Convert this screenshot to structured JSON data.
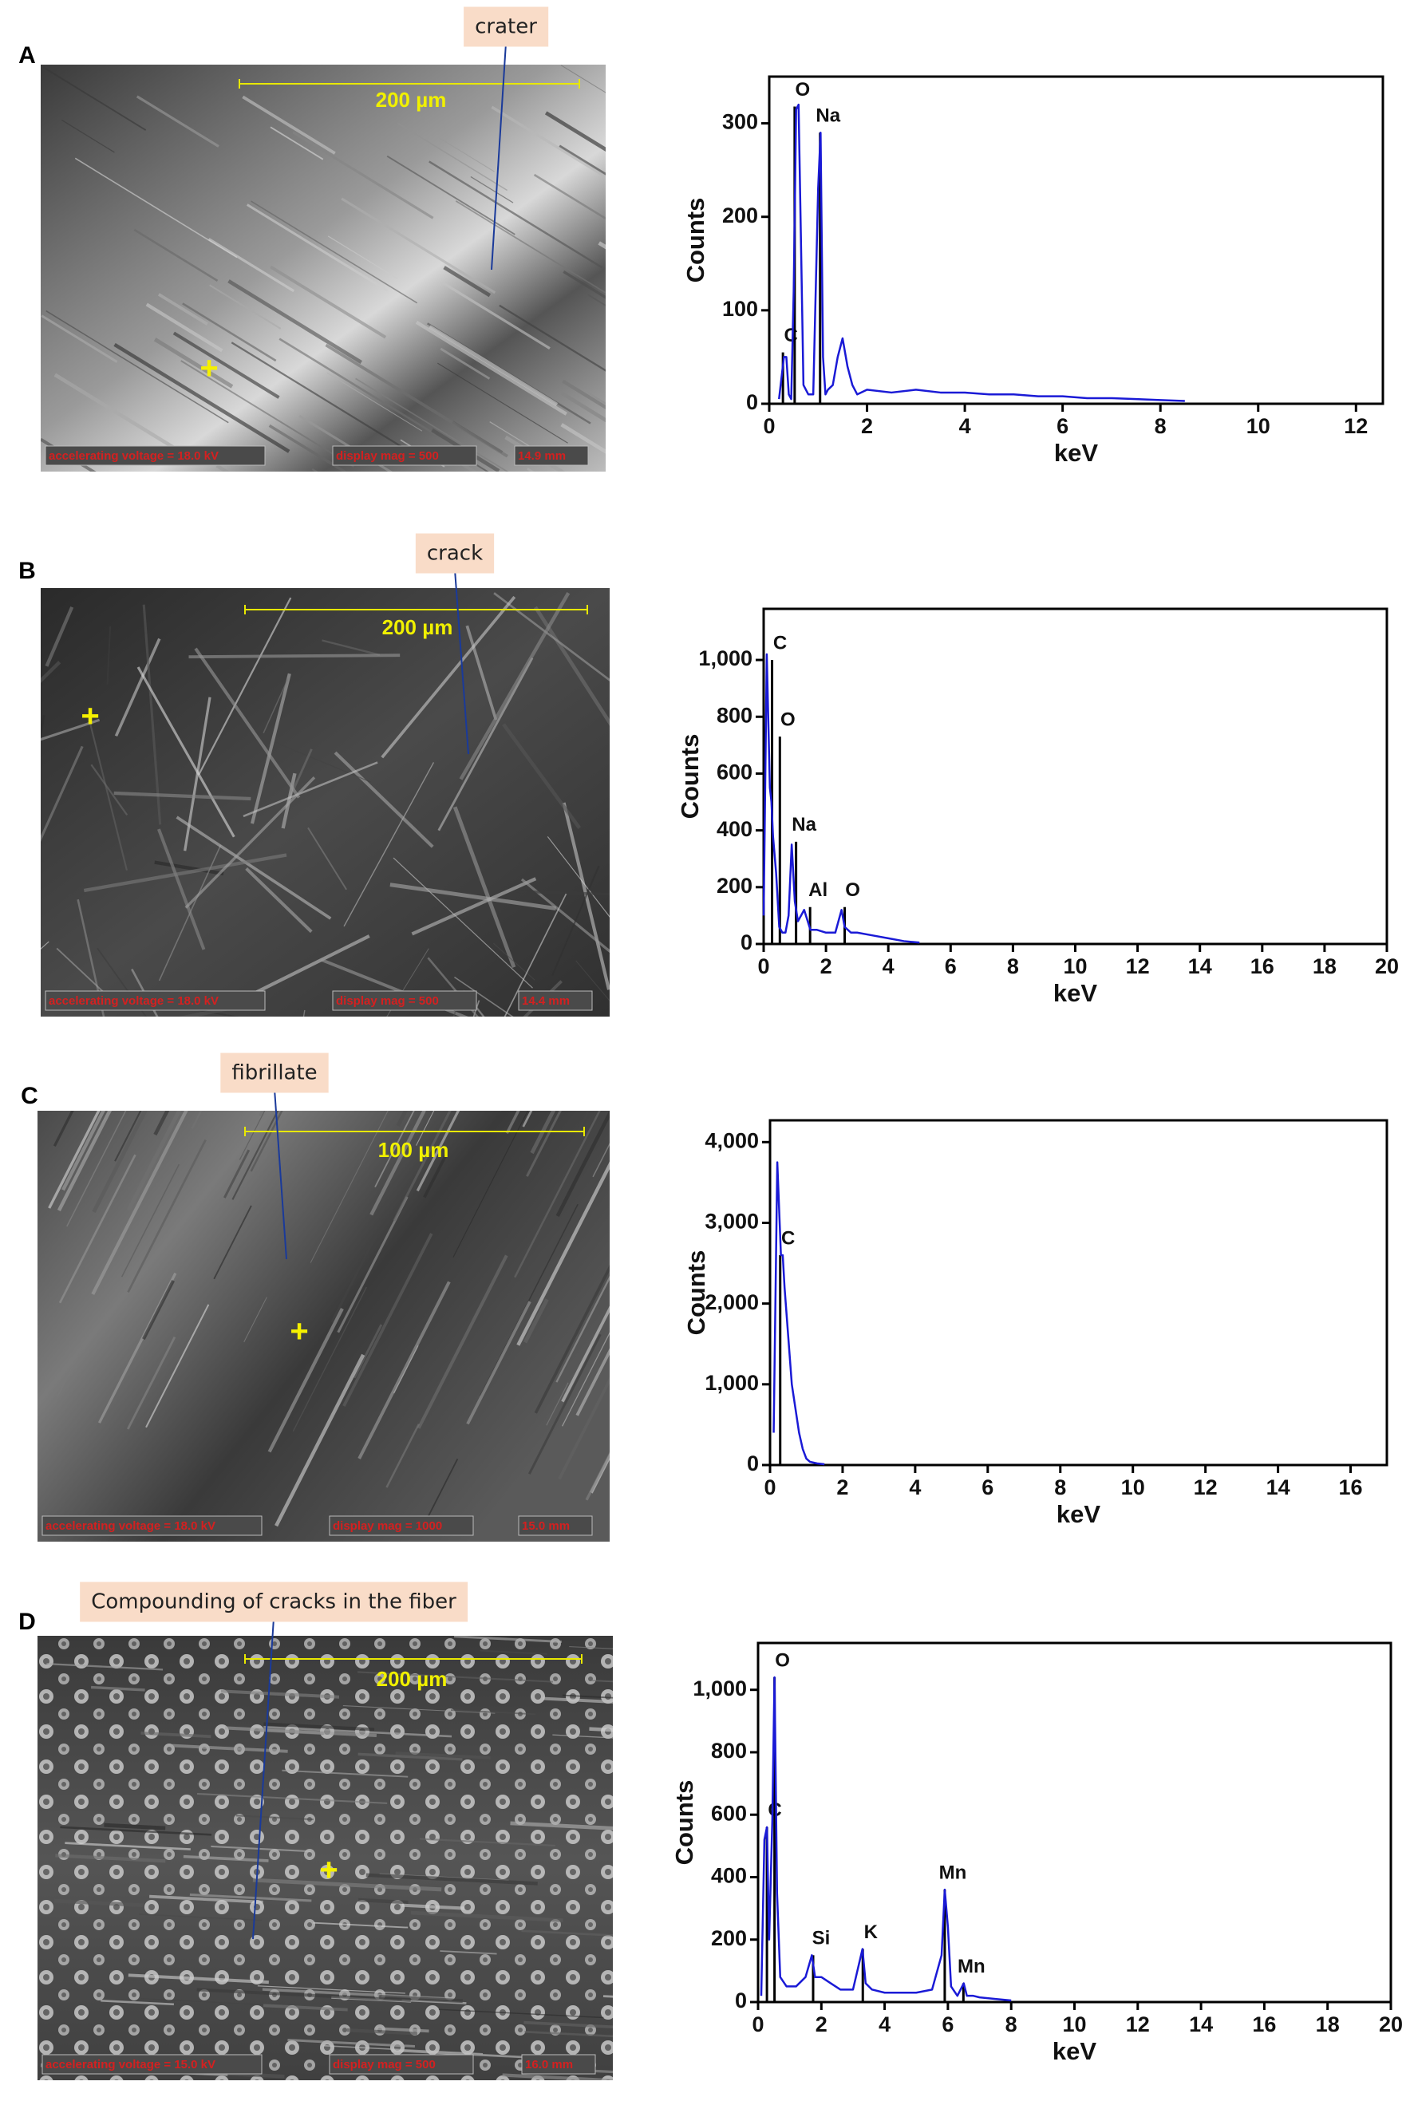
{
  "figure": {
    "panels": [
      {
        "label": "A",
        "annotation": "crater",
        "scale_bar": "200 µm",
        "cross": "+",
        "voltage": "accelerating voltage = 18.0 kV",
        "magnification": "display mag = 500",
        "distance": "14.9 mm"
      },
      {
        "label": "B",
        "annotation": "crack",
        "scale_bar": "200 µm",
        "cross": "+",
        "voltage": "accelerating voltage = 18.0 kV",
        "magnification": "display mag = 500",
        "distance": "14.4 mm"
      },
      {
        "label": "C",
        "annotation": "fibrillate",
        "scale_bar": "100 µm",
        "cross": "+",
        "voltage": "accelerating voltage = 18.0 kV",
        "magnification": "display mag = 1000",
        "distance": "15.0 mm"
      },
      {
        "label": "D",
        "annotation": "Compounding of cracks in the fiber",
        "scale_bar": "200 µm",
        "cross": "+",
        "voltage": "accelerating voltage = 15.0 kV",
        "magnification": "display mag = 500",
        "distance": "16.0 mm"
      }
    ]
  },
  "chart_data": [
    {
      "type": "line",
      "xlabel": "keV",
      "ylabel": "Counts",
      "xlim": [
        0,
        12.55
      ],
      "xticks": [
        0,
        2,
        4,
        6,
        8,
        10,
        12
      ],
      "ylim": [
        0,
        350
      ],
      "yticks": [
        0,
        100,
        200,
        300
      ],
      "x": [
        0.2,
        0.3,
        0.35,
        0.4,
        0.45,
        0.5,
        0.55,
        0.6,
        0.65,
        0.7,
        0.8,
        0.9,
        1.0,
        1.05,
        1.1,
        1.15,
        1.2,
        1.3,
        1.4,
        1.5,
        1.6,
        1.7,
        1.8,
        2,
        2.5,
        3,
        3.5,
        4,
        4.5,
        5,
        5.5,
        6,
        6.5,
        7,
        7.5,
        8,
        8.5
      ],
      "series": [
        {
          "color": "#1a1ad6",
          "values": [
            5,
            50,
            50,
            10,
            5,
            120,
            315,
            320,
            170,
            20,
            10,
            10,
            230,
            290,
            50,
            10,
            15,
            20,
            50,
            70,
            40,
            20,
            10,
            15,
            12,
            15,
            12,
            12,
            10,
            10,
            8,
            8,
            6,
            6,
            5,
            4,
            3
          ]
        }
      ],
      "peaks": {
        "color": "#000000",
        "labels": [
          "C",
          "O",
          "Na"
        ],
        "x": [
          0.28,
          0.52,
          1.04
        ],
        "values": [
          55,
          318,
          290
        ]
      }
    },
    {
      "type": "line",
      "xlabel": "keV",
      "ylabel": "Counts",
      "xlim": [
        0,
        20
      ],
      "xticks": [
        0,
        2,
        4,
        6,
        8,
        10,
        12,
        14,
        16,
        18,
        20
      ],
      "ylim": [
        0,
        1180
      ],
      "yticks": [
        0,
        200,
        400,
        600,
        800,
        {
          "value": 1000,
          "label": "1,000"
        }
      ],
      "x": [
        0,
        0.1,
        0.2,
        0.25,
        0.3,
        0.4,
        0.5,
        0.6,
        0.7,
        0.8,
        0.9,
        1.0,
        1.1,
        1.3,
        1.5,
        1.7,
        2,
        2.3,
        2.5,
        2.6,
        2.8,
        3,
        3.5,
        4,
        4.5,
        5
      ],
      "series": [
        {
          "color": "#1a1ad6",
          "values": [
            100,
            1020,
            550,
            500,
            380,
            250,
            60,
            40,
            40,
            100,
            350,
            150,
            80,
            120,
            50,
            50,
            40,
            40,
            120,
            60,
            40,
            40,
            30,
            20,
            10,
            5
          ]
        }
      ],
      "peaks": {
        "color": "#000000",
        "labels": [
          "C",
          "O",
          "Na",
          "Al",
          "O"
        ],
        "x": [
          0.27,
          0.52,
          1.04,
          1.49,
          2.6
        ],
        "values": [
          1000,
          730,
          360,
          130,
          130
        ]
      }
    },
    {
      "type": "line",
      "xlabel": "keV",
      "ylabel": "Counts",
      "xlim": [
        0,
        17
      ],
      "xticks": [
        0,
        2,
        4,
        6,
        8,
        10,
        12,
        14,
        16
      ],
      "ylim": [
        0,
        4270
      ],
      "yticks": [
        0,
        {
          "value": 1000,
          "label": "1,000"
        },
        {
          "value": 2000,
          "label": "2,000"
        },
        {
          "value": 3000,
          "label": "3,000"
        },
        {
          "value": 4000,
          "label": "4,000"
        }
      ],
      "x": [
        0.1,
        0.2,
        0.3,
        0.35,
        0.4,
        0.5,
        0.6,
        0.7,
        0.8,
        0.9,
        1.0,
        1.1,
        1.3,
        1.5
      ],
      "series": [
        {
          "color": "#1a1ad6",
          "values": [
            400,
            3750,
            2600,
            2600,
            2200,
            1600,
            1000,
            700,
            400,
            200,
            80,
            40,
            20,
            10
          ]
        }
      ],
      "peaks": {
        "color": "#000000",
        "labels": [
          "C"
        ],
        "x": [
          0.28
        ],
        "values": [
          2600
        ]
      }
    },
    {
      "type": "line",
      "xlabel": "keV",
      "ylabel": "Counts",
      "xlim": [
        0,
        20
      ],
      "xticks": [
        0,
        2,
        4,
        6,
        8,
        10,
        12,
        14,
        16,
        18,
        20
      ],
      "ylim": [
        0,
        1150
      ],
      "yticks": [
        0,
        200,
        400,
        600,
        800,
        {
          "value": 1000,
          "label": "1,000"
        }
      ],
      "x": [
        0.1,
        0.2,
        0.28,
        0.35,
        0.45,
        0.52,
        0.6,
        0.7,
        0.9,
        1.2,
        1.5,
        1.7,
        1.8,
        2,
        2.3,
        2.6,
        3,
        3.3,
        3.4,
        3.6,
        4,
        4.5,
        5,
        5.5,
        5.8,
        5.9,
        6,
        6.1,
        6.3,
        6.5,
        6.6,
        6.8,
        7,
        7.5,
        8
      ],
      "series": [
        {
          "color": "#1a1ad6",
          "values": [
            20,
            520,
            560,
            200,
            580,
            1040,
            350,
            80,
            50,
            50,
            80,
            150,
            80,
            80,
            60,
            40,
            40,
            170,
            60,
            40,
            30,
            30,
            30,
            40,
            150,
            360,
            240,
            50,
            20,
            60,
            20,
            20,
            15,
            10,
            5
          ]
        }
      ],
      "peaks": {
        "color": "#000000",
        "labels": [
          "C",
          "O",
          "Si",
          "K",
          "Mn",
          "Mn"
        ],
        "x": [
          0.28,
          0.52,
          1.74,
          3.31,
          5.9,
          6.49
        ],
        "values": [
          560,
          1040,
          150,
          170,
          360,
          60
        ]
      }
    }
  ]
}
